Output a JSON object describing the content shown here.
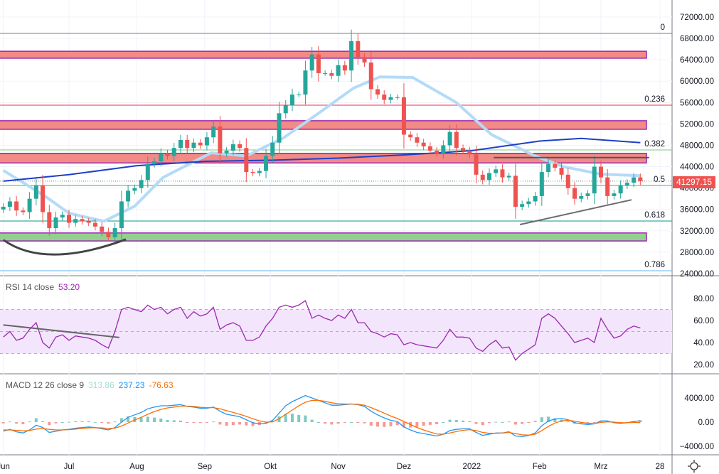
{
  "colors": {
    "up": "#26a69a",
    "down": "#ef5350",
    "ma_long": "#1e40c8",
    "ma_short": "#b3dbf7",
    "rsi": "#9c27b0",
    "rsi_band": "#f3e5fc",
    "macd": "#2196f3",
    "signal": "#ff6d00",
    "hist_up": "#26a69a",
    "hist_down": "#ef5350",
    "zone": "#f28a86",
    "zone_border": "#9c27b0",
    "zone_support": "#93d08f",
    "price_tag": "#ef5350"
  },
  "last_price": "41297.15",
  "indicators": {
    "rsi": {
      "label": "RSI 14 close",
      "value": "53.20"
    },
    "macd": {
      "label": "MACD 12 26 close 9",
      "hist": "313.86",
      "macd": "237.23",
      "signal": "-76.63"
    }
  },
  "settings_icon": "gear-icon",
  "chart_data": [
    {
      "type": "candlestick",
      "ylim": [
        24000,
        72000
      ],
      "yticks": [
        "72000.00",
        "68000.00",
        "64000.00",
        "60000.00",
        "56000.00",
        "52000.00",
        "48000.00",
        "44000.00",
        "40000.00",
        "36000.00",
        "32000.00",
        "28000.00",
        "24000.00"
      ],
      "xticks": [
        [
          "2021-06-01",
          "Jun"
        ],
        [
          "2021-07-01",
          "Jul"
        ],
        [
          "2021-08-01",
          "Aug"
        ],
        [
          "2021-09-01",
          "Sep"
        ],
        [
          "2021-10-01",
          "Okt"
        ],
        [
          "2021-11-01",
          "Nov"
        ],
        [
          "2021-12-01",
          "Dez"
        ],
        [
          "2022-01-01",
          "2022"
        ],
        [
          "2022-02-01",
          "Feb"
        ],
        [
          "2022-03-01",
          "Mrz"
        ],
        [
          "2022-03-28",
          "28"
        ]
      ],
      "first_open": 36000,
      "start_date": "2021-06-01",
      "step_days": 3,
      "close": [
        36500,
        37500,
        35800,
        35500,
        38000,
        40500,
        35500,
        32500,
        34500,
        35000,
        33500,
        34200,
        33800,
        33500,
        32800,
        31800,
        30800,
        32500,
        37500,
        39500,
        40000,
        41500,
        44500,
        45000,
        46500,
        46000,
        47500,
        49000,
        47500,
        48500,
        48000,
        49500,
        51500,
        46500,
        47000,
        48200,
        47500,
        43000,
        42800,
        43200,
        46000,
        48500,
        54000,
        55500,
        57500,
        57500,
        62000,
        65000,
        61500,
        61500,
        61000,
        63000,
        62000,
        67500,
        64500,
        63500,
        58500,
        57500,
        56500,
        57000,
        57000,
        50000,
        49500,
        48500,
        47800,
        47000,
        46500,
        48000,
        50500,
        47500,
        47000,
        46300,
        42500,
        41500,
        42800,
        43500,
        42000,
        42300,
        36500,
        37000,
        37500,
        38500,
        43000,
        44500,
        43800,
        42500,
        40000,
        38000,
        38500,
        39000,
        44000,
        42000,
        38500,
        39000,
        40500,
        41000,
        42000,
        41297.15
      ],
      "ma_long": [
        [
          "2021-06-01",
          41300
        ],
        [
          "2021-07-01",
          42500
        ],
        [
          "2021-08-01",
          44200
        ],
        [
          "2021-09-01",
          45000
        ],
        [
          "2021-10-01",
          45200
        ],
        [
          "2021-11-01",
          45600
        ],
        [
          "2021-12-01",
          46200
        ],
        [
          "2022-01-01",
          47000
        ],
        [
          "2022-02-01",
          48800
        ],
        [
          "2022-02-20",
          49300
        ],
        [
          "2022-03-19",
          48500
        ]
      ],
      "ma_short": [
        [
          "2021-06-01",
          43300
        ],
        [
          "2021-06-20",
          38500
        ],
        [
          "2021-07-01",
          35300
        ],
        [
          "2021-07-17",
          33800
        ],
        [
          "2021-07-31",
          36600
        ],
        [
          "2021-08-13",
          42000
        ],
        [
          "2021-09-04",
          46600
        ],
        [
          "2021-09-20",
          46000
        ],
        [
          "2021-10-07",
          49400
        ],
        [
          "2021-10-23",
          54000
        ],
        [
          "2021-11-08",
          58700
        ],
        [
          "2021-11-20",
          60800
        ],
        [
          "2021-12-05",
          60700
        ],
        [
          "2021-12-25",
          56000
        ],
        [
          "2022-01-10",
          50000
        ],
        [
          "2022-01-30",
          46000
        ],
        [
          "2022-02-12",
          44000
        ],
        [
          "2022-03-01",
          42600
        ],
        [
          "2022-03-19",
          42300
        ]
      ],
      "zones": [
        {
          "top": 65600,
          "bottom": 64300,
          "kind": "resistance"
        },
        {
          "top": 52600,
          "bottom": 51000,
          "kind": "resistance"
        },
        {
          "top": 46500,
          "bottom": 44700,
          "kind": "resistance"
        },
        {
          "top": 31600,
          "bottom": 30100,
          "kind": "support"
        }
      ],
      "fib": [
        {
          "level": "0",
          "price": 68940,
          "color": "#787b86"
        },
        {
          "level": "0.236",
          "price": 55510,
          "color": "#f23645"
        },
        {
          "level": "0.382",
          "price": 47130,
          "color": "#81c784"
        },
        {
          "level": "0.5",
          "price": 40480,
          "color": "#4caf50"
        },
        {
          "level": "0.618",
          "price": 33830,
          "color": "#089981"
        },
        {
          "level": "0.786",
          "price": 24520,
          "color": "#64b5f6"
        }
      ],
      "trendlines": [
        {
          "points": [
            [
              "2022-01-11",
              45700
            ],
            [
              "2022-03-23",
              45700
            ]
          ],
          "color": "#555555"
        },
        {
          "points": [
            [
              "2022-01-23",
              33170
            ],
            [
              "2022-03-15",
              37800
            ]
          ],
          "color": "#6b6b6b"
        }
      ],
      "arc": [
        [
          "2021-06-01",
          30300
        ],
        [
          "2021-06-20",
          27700
        ],
        [
          "2021-07-27",
          30400
        ]
      ]
    },
    {
      "type": "line",
      "name": "RSI 14 close",
      "ylim": [
        15,
        90
      ],
      "yticks": [
        "80.00",
        "60.00",
        "40.00",
        "20.00"
      ],
      "band": [
        30,
        70
      ],
      "values": [
        45,
        50,
        42,
        44,
        52,
        58,
        40,
        35,
        45,
        47,
        42,
        46,
        45,
        44,
        42,
        38,
        35,
        50,
        70,
        72,
        70,
        68,
        74,
        70,
        72,
        66,
        70,
        72,
        62,
        68,
        64,
        66,
        72,
        52,
        56,
        58,
        55,
        42,
        42,
        45,
        55,
        62,
        72,
        74,
        72,
        74,
        78,
        62,
        65,
        62,
        60,
        65,
        62,
        70,
        58,
        58,
        50,
        48,
        45,
        48,
        47,
        38,
        40,
        38,
        37,
        36,
        35,
        42,
        52,
        45,
        45,
        44,
        35,
        32,
        38,
        42,
        35,
        36,
        24,
        30,
        34,
        38,
        62,
        66,
        62,
        55,
        48,
        40,
        42,
        44,
        40,
        62,
        52,
        44,
        46,
        52,
        55,
        53.2
      ],
      "trendline": [
        [
          "2021-06-01",
          56
        ],
        [
          "2021-07-24",
          44.6
        ]
      ]
    },
    {
      "type": "macd",
      "name": "MACD 12 26 close 9",
      "yticks": [
        "4000.00",
        "0.00",
        "−4000.00"
      ],
      "macd": [
        -1500,
        -1200,
        -1600,
        -1800,
        -1300,
        -500,
        -900,
        -1700,
        -1500,
        -1300,
        -1200,
        -1000,
        -900,
        -800,
        -900,
        -1100,
        -1300,
        -900,
        0,
        800,
        1200,
        1600,
        2200,
        2500,
        2700,
        2700,
        2800,
        2900,
        2600,
        2500,
        2300,
        2300,
        2500,
        1800,
        1300,
        1100,
        900,
        400,
        -100,
        -300,
        -200,
        300,
        1500,
        2700,
        3400,
        3900,
        4400,
        4000,
        3600,
        3200,
        2800,
        2800,
        2900,
        3000,
        2900,
        2600,
        1800,
        1200,
        700,
        300,
        100,
        -800,
        -1300,
        -1700,
        -1900,
        -2100,
        -2300,
        -2000,
        -1400,
        -1200,
        -1100,
        -1100,
        -1700,
        -2200,
        -2000,
        -1800,
        -1800,
        -1600,
        -2300,
        -2400,
        -2200,
        -1800,
        -600,
        200,
        500,
        600,
        400,
        -100,
        -300,
        -400,
        -300,
        200,
        200,
        -100,
        -200,
        -100,
        100,
        237.23
      ],
      "signal": [
        -1300,
        -1300,
        -1350,
        -1450,
        -1400,
        -1150,
        -1050,
        -1200,
        -1300,
        -1300,
        -1250,
        -1150,
        -1050,
        -950,
        -920,
        -970,
        -1050,
        -1000,
        -650,
        -150,
        350,
        800,
        1300,
        1750,
        2100,
        2350,
        2500,
        2650,
        2650,
        2600,
        2450,
        2400,
        2400,
        2200,
        1900,
        1600,
        1300,
        950,
        550,
        200,
        0,
        50,
        550,
        1300,
        2000,
        2700,
        3300,
        3600,
        3600,
        3450,
        3200,
        3050,
        3000,
        3000,
        2950,
        2800,
        2400,
        1950,
        1500,
        1000,
        600,
        100,
        -400,
        -900,
        -1300,
        -1650,
        -1950,
        -2000,
        -1800,
        -1550,
        -1350,
        -1250,
        -1400,
        -1700,
        -1850,
        -1850,
        -1800,
        -1700,
        -1900,
        -2100,
        -2150,
        -2000,
        -1400,
        -700,
        -150,
        200,
        300,
        150,
        -50,
        -200,
        -250,
        -50,
        50,
        0,
        -100,
        -100,
        -50,
        -76.63
      ]
    }
  ]
}
